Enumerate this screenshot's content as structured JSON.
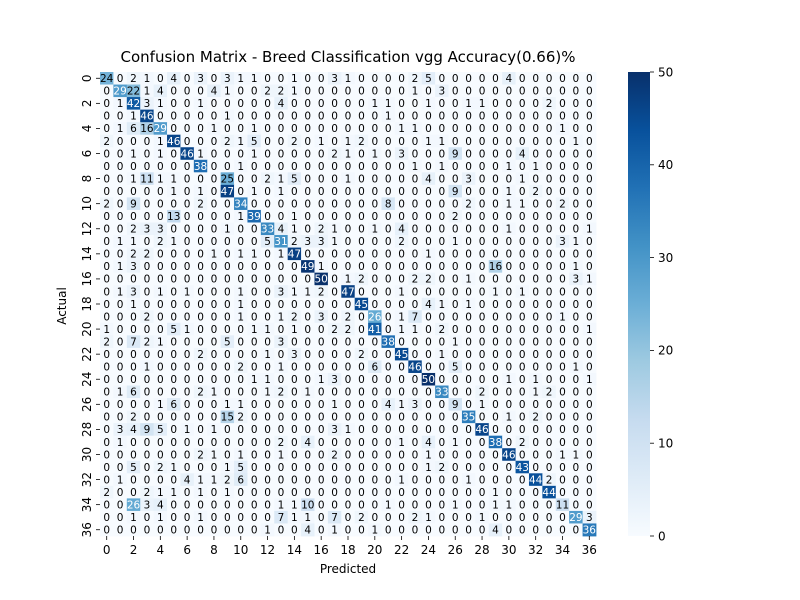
{
  "chart_data": {
    "type": "heatmap",
    "title": "Confusion Matrix - Breed Classification vgg Accuracy(0.66)%",
    "xlabel": "Predicted",
    "ylabel": "Actual",
    "x_tick_labels": [
      "0",
      "2",
      "4",
      "6",
      "8",
      "10",
      "12",
      "14",
      "16",
      "18",
      "20",
      "22",
      "24",
      "26",
      "28",
      "30",
      "32",
      "34",
      "36"
    ],
    "y_tick_labels": [
      "0",
      "2",
      "4",
      "6",
      "8",
      "10",
      "12",
      "14",
      "16",
      "18",
      "20",
      "22",
      "24",
      "26",
      "28",
      "30",
      "32",
      "34",
      "36"
    ],
    "colorbar": {
      "min": 0,
      "max": 50,
      "ticks": [
        "0",
        "10",
        "20",
        "30",
        "40",
        "50"
      ],
      "colormap": "Blues"
    },
    "matrix": [
      [
        24,
        0,
        2,
        1,
        0,
        4,
        0,
        3,
        0,
        3,
        1,
        1,
        0,
        0,
        1,
        0,
        0,
        3,
        1,
        0,
        0,
        0,
        0,
        2,
        5,
        0,
        0,
        0,
        0,
        0,
        4,
        0,
        0,
        0,
        0,
        0,
        0
      ],
      [
        0,
        29,
        22,
        1,
        4,
        0,
        0,
        0,
        4,
        1,
        0,
        0,
        2,
        2,
        1,
        0,
        0,
        0,
        0,
        0,
        0,
        0,
        0,
        1,
        0,
        3,
        0,
        0,
        0,
        0,
        0,
        0,
        0,
        0,
        0,
        0,
        0
      ],
      [
        0,
        1,
        42,
        3,
        1,
        0,
        0,
        1,
        0,
        0,
        0,
        0,
        0,
        4,
        0,
        0,
        0,
        0,
        0,
        0,
        1,
        1,
        0,
        0,
        1,
        0,
        0,
        1,
        1,
        0,
        0,
        0,
        0,
        2,
        0,
        0,
        0
      ],
      [
        0,
        0,
        1,
        46,
        0,
        0,
        0,
        0,
        0,
        1,
        0,
        0,
        0,
        0,
        0,
        0,
        0,
        0,
        0,
        0,
        0,
        1,
        0,
        0,
        0,
        0,
        0,
        0,
        0,
        0,
        0,
        0,
        0,
        0,
        0,
        0,
        0
      ],
      [
        0,
        1,
        6,
        16,
        29,
        0,
        0,
        0,
        1,
        0,
        0,
        1,
        0,
        0,
        0,
        0,
        0,
        0,
        0,
        0,
        0,
        0,
        1,
        1,
        0,
        0,
        0,
        0,
        0,
        0,
        0,
        0,
        0,
        0,
        1,
        0,
        0
      ],
      [
        2,
        0,
        0,
        0,
        1,
        46,
        0,
        0,
        0,
        2,
        1,
        5,
        0,
        0,
        2,
        0,
        1,
        0,
        1,
        2,
        0,
        0,
        0,
        0,
        1,
        1,
        0,
        0,
        0,
        0,
        0,
        0,
        0,
        0,
        0,
        1,
        0
      ],
      [
        0,
        0,
        1,
        0,
        1,
        0,
        46,
        1,
        0,
        0,
        0,
        1,
        0,
        0,
        0,
        0,
        0,
        2,
        1,
        0,
        1,
        0,
        3,
        0,
        0,
        0,
        9,
        0,
        0,
        0,
        0,
        4,
        0,
        0,
        0,
        0,
        0
      ],
      [
        0,
        0,
        0,
        0,
        0,
        0,
        0,
        38,
        0,
        0,
        1,
        0,
        0,
        0,
        0,
        0,
        0,
        0,
        0,
        0,
        0,
        0,
        0,
        1,
        0,
        1,
        0,
        0,
        0,
        0,
        1,
        0,
        1,
        0,
        0,
        0,
        0
      ],
      [
        0,
        0,
        1,
        11,
        1,
        1,
        0,
        0,
        0,
        25,
        0,
        0,
        2,
        1,
        5,
        0,
        0,
        0,
        1,
        0,
        0,
        0,
        0,
        0,
        4,
        0,
        0,
        3,
        0,
        0,
        0,
        1,
        0,
        0,
        0,
        0,
        0
      ],
      [
        0,
        0,
        0,
        0,
        0,
        1,
        0,
        1,
        0,
        47,
        0,
        1,
        0,
        1,
        0,
        0,
        0,
        0,
        0,
        0,
        0,
        0,
        0,
        0,
        0,
        0,
        9,
        0,
        0,
        0,
        1,
        0,
        2,
        0,
        0,
        0,
        0
      ],
      [
        2,
        0,
        9,
        0,
        0,
        0,
        0,
        2,
        0,
        0,
        34,
        0,
        0,
        0,
        0,
        0,
        0,
        0,
        0,
        0,
        0,
        8,
        0,
        0,
        0,
        0,
        0,
        2,
        0,
        0,
        1,
        1,
        0,
        0,
        2,
        0,
        0
      ],
      [
        0,
        0,
        0,
        0,
        0,
        13,
        0,
        0,
        0,
        0,
        1,
        39,
        0,
        0,
        1,
        0,
        0,
        0,
        0,
        0,
        0,
        0,
        0,
        0,
        0,
        0,
        2,
        0,
        0,
        0,
        0,
        0,
        0,
        0,
        0,
        0,
        0
      ],
      [
        0,
        0,
        2,
        3,
        3,
        0,
        0,
        0,
        0,
        1,
        0,
        0,
        33,
        4,
        1,
        0,
        2,
        1,
        0,
        0,
        1,
        0,
        4,
        0,
        0,
        0,
        0,
        0,
        0,
        0,
        1,
        0,
        0,
        0,
        0,
        0,
        1
      ],
      [
        0,
        1,
        1,
        0,
        2,
        1,
        0,
        0,
        0,
        0,
        0,
        0,
        5,
        31,
        2,
        3,
        3,
        1,
        0,
        0,
        0,
        0,
        2,
        0,
        0,
        0,
        1,
        0,
        0,
        0,
        0,
        0,
        0,
        0,
        3,
        1,
        0
      ],
      [
        0,
        0,
        2,
        2,
        0,
        0,
        0,
        0,
        1,
        0,
        1,
        1,
        0,
        1,
        47,
        0,
        0,
        0,
        0,
        0,
        0,
        0,
        0,
        0,
        1,
        0,
        0,
        0,
        0,
        0,
        0,
        0,
        0,
        0,
        0,
        0,
        0
      ],
      [
        0,
        1,
        3,
        0,
        0,
        0,
        0,
        0,
        0,
        0,
        0,
        0,
        0,
        0,
        0,
        49,
        1,
        0,
        0,
        0,
        0,
        0,
        0,
        0,
        0,
        0,
        0,
        0,
        0,
        16,
        0,
        0,
        0,
        0,
        0,
        1,
        0
      ],
      [
        0,
        0,
        0,
        0,
        0,
        0,
        0,
        0,
        0,
        0,
        0,
        0,
        0,
        0,
        0,
        0,
        50,
        0,
        1,
        2,
        0,
        0,
        0,
        2,
        2,
        0,
        0,
        1,
        0,
        0,
        0,
        0,
        0,
        0,
        0,
        3,
        1
      ],
      [
        0,
        1,
        3,
        0,
        1,
        0,
        1,
        0,
        0,
        0,
        1,
        0,
        0,
        3,
        1,
        1,
        2,
        0,
        47,
        0,
        0,
        0,
        1,
        0,
        0,
        0,
        0,
        0,
        0,
        1,
        0,
        1,
        0,
        0,
        0,
        0,
        0
      ],
      [
        0,
        0,
        1,
        0,
        0,
        0,
        0,
        0,
        0,
        0,
        1,
        0,
        0,
        0,
        0,
        0,
        0,
        0,
        0,
        45,
        0,
        0,
        0,
        0,
        4,
        1,
        0,
        1,
        0,
        0,
        0,
        0,
        0,
        0,
        0,
        0,
        0
      ],
      [
        0,
        0,
        0,
        2,
        0,
        0,
        0,
        0,
        0,
        0,
        1,
        0,
        0,
        1,
        2,
        0,
        3,
        0,
        2,
        0,
        26,
        0,
        1,
        7,
        0,
        0,
        0,
        0,
        0,
        0,
        0,
        0,
        0,
        0,
        1,
        0,
        0
      ],
      [
        1,
        0,
        0,
        0,
        0,
        5,
        1,
        0,
        0,
        0,
        0,
        1,
        1,
        0,
        1,
        0,
        0,
        2,
        2,
        0,
        41,
        0,
        1,
        1,
        0,
        2,
        0,
        0,
        0,
        0,
        0,
        0,
        0,
        0,
        0,
        0,
        1
      ],
      [
        2,
        0,
        7,
        2,
        1,
        0,
        0,
        0,
        0,
        5,
        0,
        0,
        0,
        3,
        0,
        0,
        0,
        0,
        0,
        0,
        0,
        38,
        0,
        0,
        0,
        0,
        1,
        0,
        0,
        0,
        0,
        0,
        0,
        0,
        0,
        0,
        0
      ],
      [
        0,
        0,
        0,
        0,
        0,
        0,
        0,
        2,
        0,
        0,
        0,
        0,
        1,
        0,
        3,
        0,
        0,
        0,
        0,
        2,
        0,
        0,
        45,
        0,
        0,
        1,
        0,
        0,
        0,
        0,
        0,
        0,
        0,
        0,
        0,
        0,
        0
      ],
      [
        0,
        0,
        0,
        1,
        0,
        0,
        0,
        0,
        0,
        0,
        2,
        0,
        0,
        1,
        0,
        0,
        0,
        0,
        0,
        0,
        6,
        0,
        0,
        46,
        0,
        0,
        5,
        0,
        0,
        0,
        0,
        0,
        0,
        0,
        0,
        1,
        0
      ],
      [
        0,
        0,
        0,
        0,
        0,
        0,
        0,
        0,
        0,
        0,
        0,
        1,
        1,
        0,
        0,
        0,
        1,
        3,
        0,
        0,
        0,
        0,
        0,
        0,
        50,
        0,
        0,
        0,
        0,
        0,
        1,
        0,
        1,
        0,
        0,
        0,
        1
      ],
      [
        0,
        1,
        6,
        0,
        0,
        0,
        0,
        2,
        1,
        0,
        0,
        0,
        1,
        2,
        0,
        1,
        0,
        0,
        0,
        0,
        0,
        0,
        0,
        0,
        0,
        33,
        0,
        0,
        2,
        0,
        0,
        0,
        1,
        2,
        0,
        0,
        0
      ],
      [
        0,
        0,
        0,
        0,
        1,
        6,
        0,
        0,
        0,
        1,
        1,
        0,
        0,
        0,
        0,
        0,
        0,
        1,
        0,
        0,
        0,
        4,
        1,
        3,
        0,
        0,
        9,
        0,
        1,
        0,
        0,
        0,
        0,
        0,
        0,
        0,
        0
      ],
      [
        0,
        0,
        2,
        0,
        0,
        0,
        0,
        0,
        0,
        15,
        2,
        0,
        0,
        0,
        0,
        0,
        0,
        0,
        0,
        0,
        0,
        0,
        0,
        0,
        0,
        0,
        0,
        35,
        0,
        0,
        1,
        0,
        2,
        0,
        0,
        0,
        0
      ],
      [
        0,
        3,
        4,
        9,
        5,
        0,
        1,
        0,
        1,
        0,
        0,
        0,
        0,
        0,
        0,
        0,
        0,
        3,
        1,
        0,
        0,
        0,
        0,
        0,
        0,
        0,
        0,
        0,
        46,
        0,
        0,
        0,
        0,
        0,
        0,
        0,
        0
      ],
      [
        0,
        1,
        0,
        0,
        0,
        0,
        0,
        0,
        0,
        0,
        0,
        0,
        0,
        2,
        0,
        4,
        0,
        0,
        0,
        0,
        0,
        0,
        1,
        0,
        4,
        0,
        1,
        0,
        0,
        38,
        0,
        2,
        0,
        0,
        0,
        0,
        0
      ],
      [
        0,
        0,
        0,
        0,
        0,
        0,
        0,
        2,
        1,
        0,
        1,
        0,
        0,
        1,
        0,
        0,
        0,
        2,
        0,
        0,
        0,
        0,
        0,
        0,
        1,
        0,
        0,
        0,
        0,
        0,
        46,
        0,
        0,
        0,
        1,
        1,
        0
      ],
      [
        0,
        0,
        5,
        0,
        2,
        1,
        0,
        0,
        0,
        1,
        5,
        0,
        0,
        0,
        0,
        0,
        0,
        0,
        0,
        0,
        0,
        0,
        0,
        0,
        1,
        2,
        0,
        0,
        0,
        0,
        0,
        43,
        0,
        0,
        0,
        0,
        0
      ],
      [
        0,
        1,
        0,
        0,
        0,
        0,
        4,
        1,
        1,
        2,
        6,
        0,
        0,
        0,
        0,
        0,
        0,
        0,
        0,
        0,
        0,
        0,
        1,
        0,
        0,
        0,
        0,
        1,
        0,
        0,
        0,
        0,
        44,
        2,
        0,
        0,
        0
      ],
      [
        2,
        0,
        0,
        2,
        1,
        1,
        0,
        1,
        0,
        1,
        0,
        0,
        0,
        0,
        0,
        0,
        0,
        0,
        0,
        0,
        0,
        0,
        0,
        0,
        0,
        0,
        0,
        0,
        0,
        1,
        0,
        0,
        0,
        44,
        0,
        0,
        0
      ],
      [
        0,
        0,
        26,
        3,
        4,
        0,
        0,
        0,
        0,
        0,
        0,
        0,
        0,
        1,
        1,
        10,
        0,
        0,
        0,
        0,
        0,
        1,
        0,
        0,
        0,
        0,
        1,
        0,
        0,
        1,
        1,
        0,
        0,
        0,
        11,
        0,
        0
      ],
      [
        0,
        0,
        1,
        0,
        1,
        0,
        0,
        1,
        0,
        0,
        0,
        0,
        0,
        7,
        1,
        1,
        0,
        7,
        0,
        2,
        0,
        0,
        0,
        2,
        1,
        0,
        0,
        0,
        1,
        0,
        0,
        0,
        0,
        0,
        0,
        29,
        3
      ],
      [
        0,
        0,
        0,
        0,
        0,
        0,
        0,
        0,
        0,
        0,
        0,
        0,
        1,
        0,
        0,
        4,
        0,
        1,
        0,
        0,
        1,
        0,
        0,
        0,
        0,
        0,
        0,
        0,
        0,
        4,
        0,
        0,
        0,
        0,
        0,
        0,
        36
      ]
    ]
  }
}
